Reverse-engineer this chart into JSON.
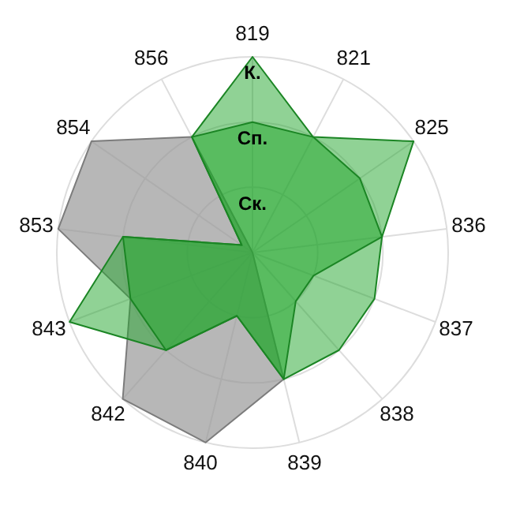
{
  "chart_data": {
    "type": "radar",
    "categories": [
      "819",
      "821",
      "825",
      "836",
      "837",
      "838",
      "839",
      "840",
      "842",
      "843",
      "853",
      "854",
      "856"
    ],
    "ylim": [
      0,
      3
    ],
    "yticks": [
      {
        "value": 1,
        "label": "Ск."
      },
      {
        "value": 2,
        "label": "Сп."
      },
      {
        "value": 3,
        "label": "К."
      }
    ],
    "grid": true,
    "relative": false,
    "series": [
      {
        "color": "#999999",
        "values": [
          0,
          0,
          0,
          0,
          0,
          0,
          2,
          3,
          3,
          2,
          3,
          3,
          2
        ]
      },
      {
        "color": "#22a52c",
        "values": [
          3,
          2,
          3,
          2,
          2,
          2,
          2,
          1,
          2,
          3,
          2,
          0.2,
          2
        ]
      },
      {
        "color": "#22a52c",
        "values": [
          2,
          2,
          2,
          2,
          1,
          1,
          2,
          1,
          2,
          2,
          2,
          0.2,
          2
        ]
      }
    ]
  }
}
